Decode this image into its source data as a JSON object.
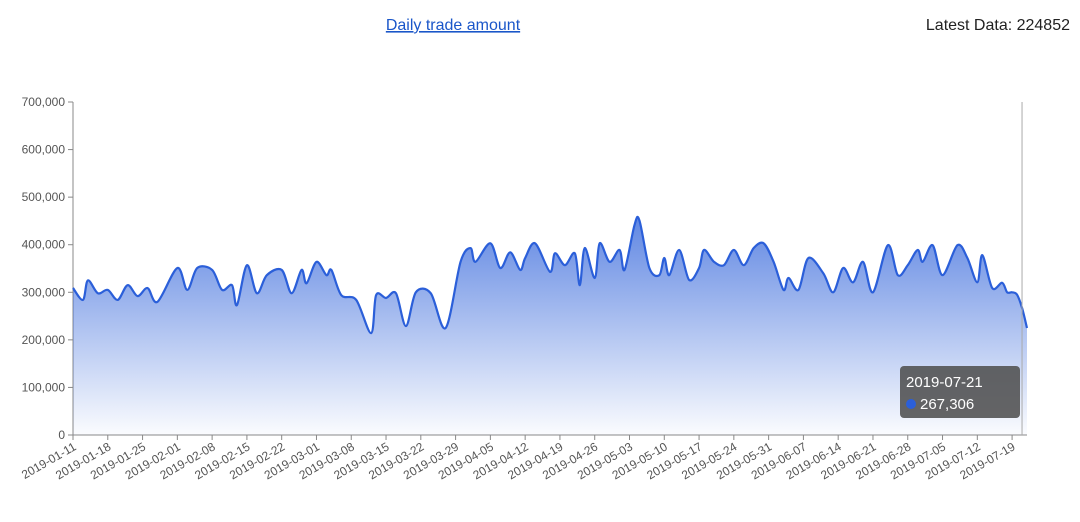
{
  "header": {
    "title": "Daily trade amount",
    "latest_data": "Latest Data: 224852"
  },
  "chart_data": {
    "type": "area",
    "x": [
      "2019-01-11",
      "2019-01-13",
      "2019-01-14",
      "2019-01-16",
      "2019-01-18",
      "2019-01-20",
      "2019-01-22",
      "2019-01-24",
      "2019-01-26",
      "2019-01-28",
      "2019-02-01",
      "2019-02-03",
      "2019-02-05",
      "2019-02-08",
      "2019-02-10",
      "2019-02-12",
      "2019-02-13",
      "2019-02-15",
      "2019-02-17",
      "2019-02-19",
      "2019-02-22",
      "2019-02-24",
      "2019-02-26",
      "2019-02-27",
      "2019-03-01",
      "2019-03-03",
      "2019-03-04",
      "2019-03-06",
      "2019-03-09",
      "2019-03-12",
      "2019-03-13",
      "2019-03-15",
      "2019-03-17",
      "2019-03-19",
      "2019-03-21",
      "2019-03-24",
      "2019-03-27",
      "2019-03-30",
      "2019-04-01",
      "2019-04-02",
      "2019-04-05",
      "2019-04-07",
      "2019-04-09",
      "2019-04-11",
      "2019-04-12",
      "2019-04-14",
      "2019-04-17",
      "2019-04-18",
      "2019-04-20",
      "2019-04-22",
      "2019-04-23",
      "2019-04-24",
      "2019-04-26",
      "2019-04-27",
      "2019-04-29",
      "2019-05-01",
      "2019-05-02",
      "2019-05-04",
      "2019-05-05",
      "2019-05-07",
      "2019-05-09",
      "2019-05-10",
      "2019-05-11",
      "2019-05-13",
      "2019-05-15",
      "2019-05-17",
      "2019-05-18",
      "2019-05-20",
      "2019-05-22",
      "2019-05-24",
      "2019-05-26",
      "2019-05-28",
      "2019-05-30",
      "2019-06-01",
      "2019-06-03",
      "2019-06-04",
      "2019-06-06",
      "2019-06-08",
      "2019-06-11",
      "2019-06-13",
      "2019-06-15",
      "2019-06-17",
      "2019-06-19",
      "2019-06-21",
      "2019-06-24",
      "2019-06-26",
      "2019-06-28",
      "2019-06-30",
      "2019-07-01",
      "2019-07-03",
      "2019-07-05",
      "2019-07-08",
      "2019-07-10",
      "2019-07-12",
      "2019-07-13",
      "2019-07-15",
      "2019-07-17",
      "2019-07-18",
      "2019-07-19",
      "2019-07-20",
      "2019-07-21",
      "2019-07-22"
    ],
    "values": [
      309000,
      284000,
      325000,
      298000,
      305000,
      284000,
      315000,
      292000,
      309000,
      280000,
      351000,
      305000,
      351000,
      347000,
      305000,
      315000,
      273000,
      357000,
      298000,
      336000,
      347000,
      298000,
      347000,
      319000,
      364000,
      336000,
      347000,
      294000,
      284000,
      214000,
      294000,
      288000,
      298000,
      229000,
      300000,
      298000,
      225000,
      364000,
      393000,
      364000,
      403000,
      351000,
      384000,
      347000,
      372000,
      403000,
      343000,
      382000,
      357000,
      382000,
      315000,
      393000,
      330000,
      403000,
      364000,
      389000,
      347000,
      441000,
      451000,
      351000,
      336000,
      372000,
      336000,
      389000,
      326000,
      351000,
      389000,
      364000,
      357000,
      389000,
      357000,
      393000,
      403000,
      364000,
      305000,
      330000,
      305000,
      372000,
      340000,
      300000,
      351000,
      321000,
      364000,
      300000,
      399000,
      336000,
      357000,
      389000,
      364000,
      399000,
      336000,
      399000,
      372000,
      321000,
      378000,
      309000,
      320000,
      300000,
      300000,
      295000,
      267306,
      224852
    ],
    "color": "#2b5fd9",
    "xlim": [
      "2019-01-11",
      "2019-07-22"
    ],
    "xticks": [
      "2019-01-11",
      "2019-01-18",
      "2019-01-25",
      "2019-02-01",
      "2019-02-08",
      "2019-02-15",
      "2019-02-22",
      "2019-03-01",
      "2019-03-08",
      "2019-03-15",
      "2019-03-22",
      "2019-03-29",
      "2019-04-05",
      "2019-04-12",
      "2019-04-19",
      "2019-04-26",
      "2019-05-03",
      "2019-05-10",
      "2019-05-17",
      "2019-05-24",
      "2019-05-31",
      "2019-06-07",
      "2019-06-14",
      "2019-06-21",
      "2019-06-28",
      "2019-07-05",
      "2019-07-12",
      "2019-07-19"
    ],
    "ylim": [
      0,
      700000
    ],
    "yticks": [
      0,
      {
        "value": 100000,
        "label": "100,000"
      },
      {
        "value": 200000,
        "label": "200,000"
      },
      {
        "value": 300000,
        "label": "300,000"
      },
      {
        "value": 400000,
        "label": "400,000"
      },
      {
        "value": 500000,
        "label": "500,000"
      },
      {
        "value": 600000,
        "label": "600,000"
      },
      {
        "value": 700000,
        "label": "700,000"
      }
    ],
    "tooltip": {
      "x": "2019-07-21",
      "value": 267306,
      "value_label": "267,306"
    }
  }
}
